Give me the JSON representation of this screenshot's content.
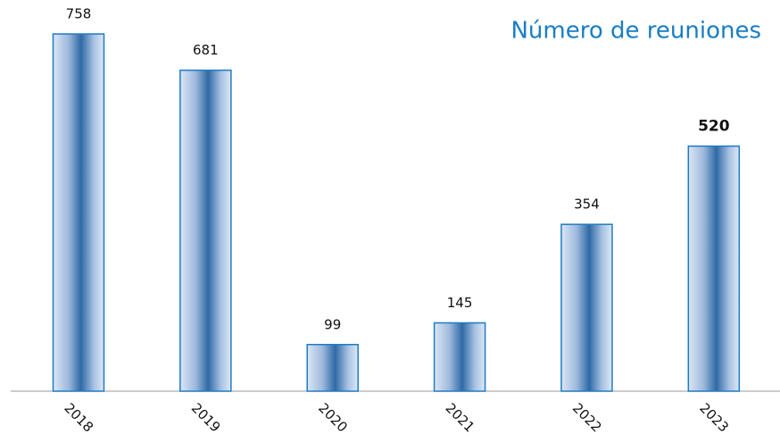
{
  "chart_data": {
    "type": "bar",
    "title": "Número de reuniones",
    "categories": [
      "2018",
      "2019",
      "2020",
      "2021",
      "2022",
      "2023"
    ],
    "values": [
      758,
      681,
      99,
      145,
      354,
      520
    ],
    "color": "#2f6aa6",
    "edge_color": "#1f7bc4"
  }
}
